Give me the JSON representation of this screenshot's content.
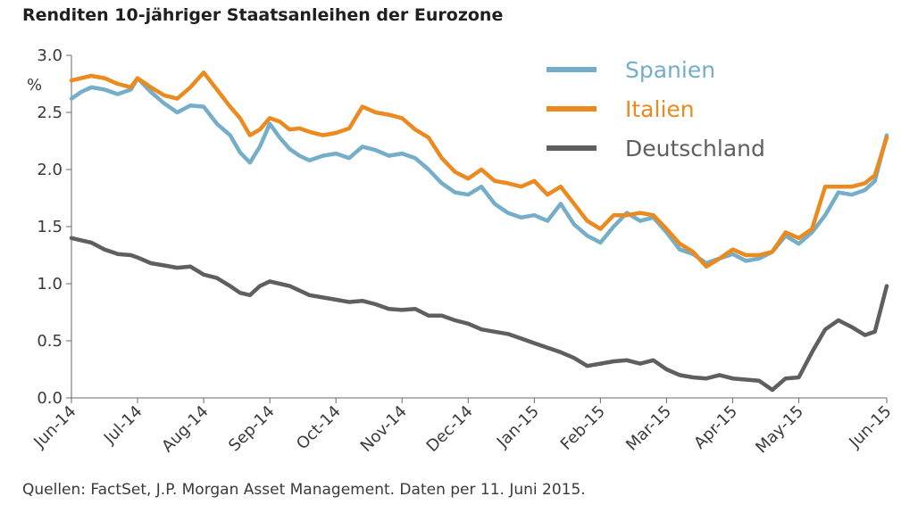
{
  "header": {
    "title": "Renditen 10-jähriger Staatsanleihen der Eurozone"
  },
  "footer": {
    "source": "Quellen: FactSet, J.P. Morgan Asset Management. Daten per 11. Juni 2015."
  },
  "chart_data": {
    "type": "line",
    "title": "Renditen 10-jähriger Staatsanleihen der Eurozone",
    "xlabel": "",
    "ylabel": "%",
    "ylim": [
      0,
      3
    ],
    "yticks": [
      0.0,
      0.5,
      1.0,
      1.5,
      2.0,
      2.5,
      3.0
    ],
    "ytick_labels": [
      "0.0",
      "0.5",
      "1.0",
      "1.5",
      "2.0",
      "2.5",
      "3.0"
    ],
    "x_tick_labels": [
      "Jun-14",
      "Jul-14",
      "Aug-14",
      "Sep-14",
      "Oct-14",
      "Nov-14",
      "Dec-14",
      "Jan-15",
      "Feb-15",
      "Mar-15",
      "Apr-15",
      "May-15",
      "Jun-15"
    ],
    "xlim": [
      0,
      12.33
    ],
    "grid": false,
    "legend_position": "top-right",
    "series": [
      {
        "name": "Spanien",
        "color": "#74aec8",
        "x": [
          0,
          0.15,
          0.3,
          0.5,
          0.7,
          0.9,
          1.0,
          1.2,
          1.4,
          1.6,
          1.8,
          2.0,
          2.2,
          2.4,
          2.55,
          2.7,
          2.85,
          3.0,
          3.15,
          3.3,
          3.45,
          3.6,
          3.8,
          4.0,
          4.2,
          4.4,
          4.6,
          4.8,
          5.0,
          5.2,
          5.4,
          5.6,
          5.8,
          6.0,
          6.2,
          6.4,
          6.6,
          6.8,
          7.0,
          7.2,
          7.4,
          7.6,
          7.8,
          8.0,
          8.2,
          8.4,
          8.6,
          8.8,
          9.0,
          9.2,
          9.4,
          9.6,
          9.8,
          10.0,
          10.2,
          10.4,
          10.6,
          10.8,
          11.0,
          11.2,
          11.4,
          11.6,
          11.8,
          12.0,
          12.15,
          12.33
        ],
        "values": [
          2.62,
          2.68,
          2.72,
          2.7,
          2.66,
          2.7,
          2.8,
          2.68,
          2.58,
          2.5,
          2.56,
          2.55,
          2.4,
          2.3,
          2.15,
          2.06,
          2.2,
          2.4,
          2.28,
          2.18,
          2.12,
          2.08,
          2.12,
          2.14,
          2.1,
          2.2,
          2.17,
          2.12,
          2.14,
          2.1,
          2.0,
          1.88,
          1.8,
          1.78,
          1.85,
          1.7,
          1.62,
          1.58,
          1.6,
          1.55,
          1.7,
          1.52,
          1.42,
          1.36,
          1.5,
          1.62,
          1.55,
          1.58,
          1.45,
          1.3,
          1.26,
          1.18,
          1.22,
          1.26,
          1.2,
          1.22,
          1.28,
          1.42,
          1.35,
          1.45,
          1.6,
          1.8,
          1.78,
          1.82,
          1.9,
          2.3
        ]
      },
      {
        "name": "Italien",
        "color": "#ea8a1f",
        "x": [
          0,
          0.15,
          0.3,
          0.5,
          0.7,
          0.9,
          1.0,
          1.2,
          1.4,
          1.6,
          1.8,
          2.0,
          2.2,
          2.4,
          2.55,
          2.7,
          2.85,
          3.0,
          3.15,
          3.3,
          3.45,
          3.6,
          3.8,
          4.0,
          4.2,
          4.4,
          4.6,
          4.8,
          5.0,
          5.2,
          5.4,
          5.6,
          5.8,
          6.0,
          6.2,
          6.4,
          6.6,
          6.8,
          7.0,
          7.2,
          7.4,
          7.6,
          7.8,
          8.0,
          8.2,
          8.4,
          8.6,
          8.8,
          9.0,
          9.2,
          9.4,
          9.6,
          9.8,
          10.0,
          10.2,
          10.4,
          10.6,
          10.8,
          11.0,
          11.2,
          11.4,
          11.6,
          11.8,
          12.0,
          12.15,
          12.33
        ],
        "values": [
          2.78,
          2.8,
          2.82,
          2.8,
          2.75,
          2.72,
          2.8,
          2.72,
          2.65,
          2.62,
          2.72,
          2.85,
          2.7,
          2.55,
          2.45,
          2.3,
          2.35,
          2.45,
          2.42,
          2.35,
          2.36,
          2.33,
          2.3,
          2.32,
          2.36,
          2.55,
          2.5,
          2.48,
          2.45,
          2.35,
          2.28,
          2.1,
          1.98,
          1.92,
          2.0,
          1.9,
          1.88,
          1.85,
          1.9,
          1.78,
          1.85,
          1.7,
          1.55,
          1.48,
          1.6,
          1.6,
          1.62,
          1.6,
          1.48,
          1.35,
          1.28,
          1.15,
          1.22,
          1.3,
          1.25,
          1.25,
          1.28,
          1.45,
          1.4,
          1.48,
          1.85,
          1.85,
          1.85,
          1.88,
          1.95,
          2.28
        ]
      },
      {
        "name": "Deutschland",
        "color": "#5f5f5f",
        "x": [
          0,
          0.15,
          0.3,
          0.5,
          0.7,
          0.9,
          1.0,
          1.2,
          1.4,
          1.6,
          1.8,
          2.0,
          2.2,
          2.4,
          2.55,
          2.7,
          2.85,
          3.0,
          3.15,
          3.3,
          3.45,
          3.6,
          3.8,
          4.0,
          4.2,
          4.4,
          4.6,
          4.8,
          5.0,
          5.2,
          5.4,
          5.6,
          5.8,
          6.0,
          6.2,
          6.4,
          6.6,
          6.8,
          7.0,
          7.2,
          7.4,
          7.6,
          7.8,
          8.0,
          8.2,
          8.4,
          8.6,
          8.8,
          9.0,
          9.2,
          9.4,
          9.6,
          9.8,
          10.0,
          10.2,
          10.4,
          10.6,
          10.8,
          11.0,
          11.2,
          11.4,
          11.6,
          11.8,
          12.0,
          12.15,
          12.33
        ],
        "values": [
          1.4,
          1.38,
          1.36,
          1.3,
          1.26,
          1.25,
          1.23,
          1.18,
          1.16,
          1.14,
          1.15,
          1.08,
          1.05,
          0.98,
          0.92,
          0.9,
          0.98,
          1.02,
          1.0,
          0.98,
          0.94,
          0.9,
          0.88,
          0.86,
          0.84,
          0.85,
          0.82,
          0.78,
          0.77,
          0.78,
          0.72,
          0.72,
          0.68,
          0.65,
          0.6,
          0.58,
          0.56,
          0.52,
          0.48,
          0.44,
          0.4,
          0.35,
          0.28,
          0.3,
          0.32,
          0.33,
          0.3,
          0.33,
          0.25,
          0.2,
          0.18,
          0.17,
          0.2,
          0.17,
          0.16,
          0.15,
          0.07,
          0.17,
          0.18,
          0.4,
          0.6,
          0.68,
          0.62,
          0.55,
          0.58,
          0.98
        ]
      }
    ]
  }
}
